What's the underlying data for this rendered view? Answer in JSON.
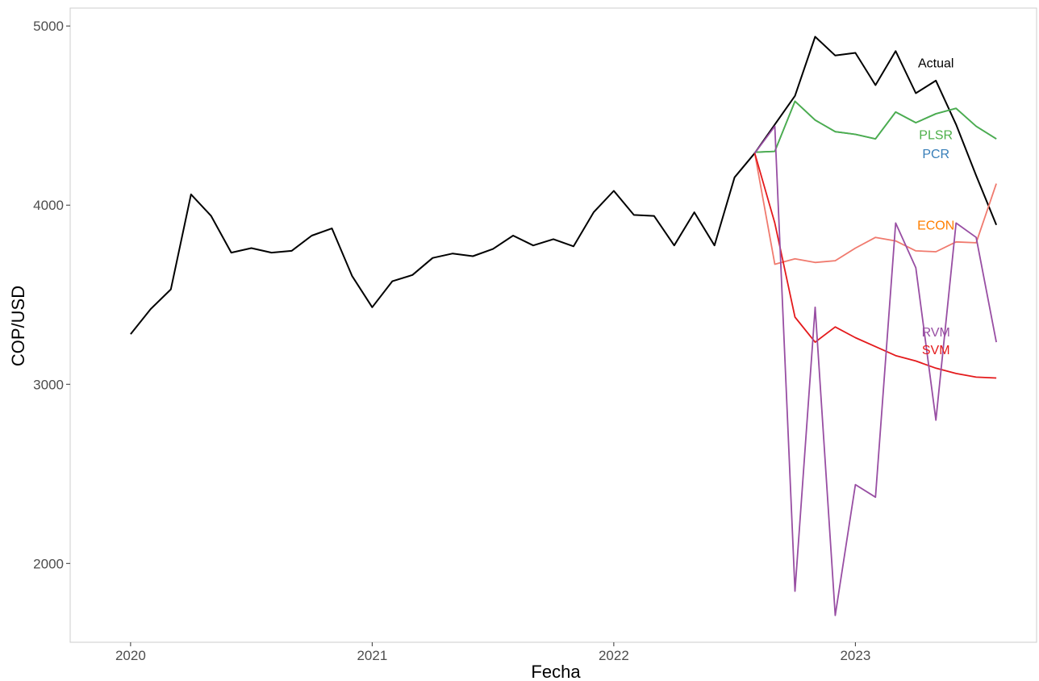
{
  "chart_data": {
    "type": "line",
    "xlabel": "Fecha",
    "ylabel": "COP/USD",
    "x_tick_labels": [
      "2020",
      "2021",
      "2022",
      "2023"
    ],
    "x_ticks": [
      "2020-01",
      "2021-01",
      "2022-01",
      "2023-01"
    ],
    "y_ticks": [
      2000,
      3000,
      4000,
      5000
    ],
    "xlim": [
      "2019-10",
      "2023-10"
    ],
    "ylim": [
      1560,
      5100
    ],
    "grid": false,
    "legend": "none (series labeled directly on plot)",
    "series": [
      {
        "name": "Actual",
        "color": "#000000",
        "x": [
          "2020-01",
          "2020-02",
          "2020-03",
          "2020-04",
          "2020-05",
          "2020-06",
          "2020-07",
          "2020-08",
          "2020-09",
          "2020-10",
          "2020-11",
          "2020-12",
          "2021-01",
          "2021-02",
          "2021-03",
          "2021-04",
          "2021-05",
          "2021-06",
          "2021-07",
          "2021-08",
          "2021-09",
          "2021-10",
          "2021-11",
          "2021-12",
          "2022-01",
          "2022-02",
          "2022-03",
          "2022-04",
          "2022-05",
          "2022-06",
          "2022-07",
          "2022-08",
          "2022-09",
          "2022-10",
          "2022-11",
          "2022-12",
          "2023-01",
          "2023-02",
          "2023-03",
          "2023-04",
          "2023-05",
          "2023-06",
          "2023-07",
          "2023-08"
        ],
        "values": [
          3280,
          3420,
          3530,
          4060,
          3940,
          3735,
          3760,
          3735,
          3745,
          3830,
          3870,
          3605,
          3430,
          3575,
          3610,
          3705,
          3730,
          3715,
          3755,
          3830,
          3775,
          3810,
          3770,
          3960,
          4080,
          3945,
          3940,
          3775,
          3960,
          3775,
          4155,
          4290,
          4450,
          4610,
          4940,
          4835,
          4850,
          4670,
          4860,
          4625,
          4695,
          4450,
          4165,
          3890
        ]
      },
      {
        "name": "PLSR",
        "color": "#4daf4a",
        "x": [
          "2022-08",
          "2022-09",
          "2022-10",
          "2022-11",
          "2022-12",
          "2023-01",
          "2023-02",
          "2023-03",
          "2023-04",
          "2023-05",
          "2023-06",
          "2023-07",
          "2023-08"
        ],
        "values": [
          4295,
          4300,
          4580,
          4475,
          4410,
          4395,
          4370,
          4520,
          4460,
          4510,
          4540,
          4440,
          4370
        ]
      },
      {
        "name": "PCR",
        "color": "#377eb8",
        "x": [
          "2022-08",
          "2022-09",
          "2022-10",
          "2022-11",
          "2022-12",
          "2023-01",
          "2023-02",
          "2023-03",
          "2023-04",
          "2023-05",
          "2023-06",
          "2023-07",
          "2023-08"
        ],
        "values": [
          4295,
          4300,
          4580,
          4475,
          4410,
          4395,
          4370,
          4520,
          4460,
          4510,
          4540,
          4440,
          4370
        ]
      },
      {
        "name": "ECON",
        "color": "#f07a6e",
        "x": [
          "2022-08",
          "2022-09",
          "2022-10",
          "2022-11",
          "2022-12",
          "2023-01",
          "2023-02",
          "2023-03",
          "2023-04",
          "2023-05",
          "2023-06",
          "2023-07",
          "2023-08"
        ],
        "values": [
          4290,
          3670,
          3700,
          3680,
          3690,
          3760,
          3820,
          3800,
          3745,
          3740,
          3795,
          3790,
          4120
        ]
      },
      {
        "name": "SVM",
        "color": "#e41a1c",
        "x": [
          "2022-08",
          "2022-09",
          "2022-10",
          "2022-11",
          "2022-12",
          "2023-01",
          "2023-02",
          "2023-03",
          "2023-04",
          "2023-05",
          "2023-06",
          "2023-07",
          "2023-08"
        ],
        "values": [
          4290,
          3900,
          3375,
          3235,
          3320,
          3260,
          3210,
          3160,
          3130,
          3090,
          3060,
          3040,
          3035
        ]
      },
      {
        "name": "RVM",
        "color": "#984ea3",
        "x": [
          "2022-08",
          "2022-09",
          "2022-10",
          "2022-11",
          "2022-12",
          "2023-01",
          "2023-02",
          "2023-03",
          "2023-04",
          "2023-05",
          "2023-06",
          "2023-07",
          "2023-08"
        ],
        "values": [
          4290,
          4440,
          1845,
          3430,
          1710,
          2440,
          2370,
          3900,
          3650,
          2800,
          3900,
          3820,
          3235
        ]
      }
    ],
    "annotations": [
      {
        "text": "Actual",
        "color": "#000000"
      },
      {
        "text": "PLSR",
        "color": "#4daf4a"
      },
      {
        "text": "PCR",
        "color": "#377eb8"
      },
      {
        "text": "ECON",
        "color": "#ff7f00"
      },
      {
        "text": "RVM",
        "color": "#984ea3"
      },
      {
        "text": "SVM",
        "color": "#e41a1c"
      }
    ]
  }
}
